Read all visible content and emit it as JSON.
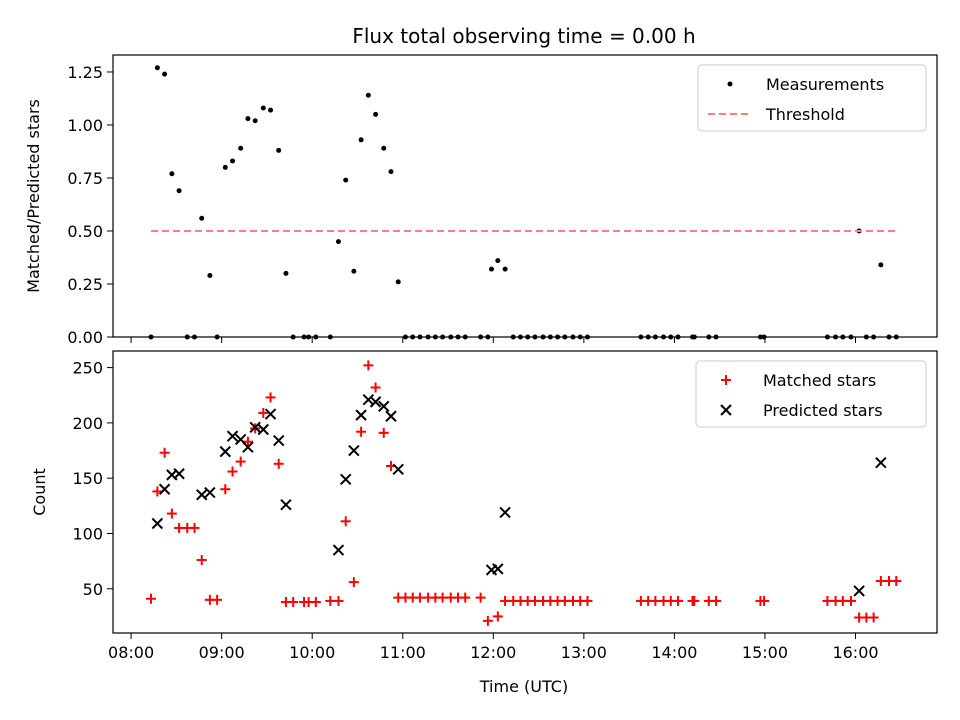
{
  "chart_data": [
    {
      "type": "scatter",
      "title": "Flux total observing time = 0.00 h",
      "xlabel": "",
      "ylabel": "Matched/Predicted stars",
      "xlim": [
        7.8,
        16.9
      ],
      "ylim": [
        0.0,
        1.33
      ],
      "yticks": [
        0.0,
        0.25,
        0.5,
        0.75,
        1.0,
        1.25
      ],
      "ytick_labels": [
        "0.00",
        "0.25",
        "0.50",
        "0.75",
        "1.00",
        "1.25"
      ],
      "xticks": [
        8,
        9,
        10,
        11,
        12,
        13,
        14,
        15,
        16
      ],
      "legend_position": "top-right",
      "series": [
        {
          "name": "Measurements",
          "kind": "points",
          "color": "#000000",
          "points": [
            [
              8.22,
              0.0
            ],
            [
              8.29,
              1.27
            ],
            [
              8.37,
              1.24
            ],
            [
              8.45,
              0.77
            ],
            [
              8.53,
              0.69
            ],
            [
              8.62,
              0.0
            ],
            [
              8.7,
              0.0
            ],
            [
              8.78,
              0.56
            ],
            [
              8.87,
              0.29
            ],
            [
              8.95,
              0.0
            ],
            [
              9.04,
              0.8
            ],
            [
              9.12,
              0.83
            ],
            [
              9.21,
              0.89
            ],
            [
              9.29,
              1.03
            ],
            [
              9.37,
              1.02
            ],
            [
              9.46,
              1.08
            ],
            [
              9.54,
              1.07
            ],
            [
              9.63,
              0.88
            ],
            [
              9.71,
              0.3
            ],
            [
              9.79,
              0.0
            ],
            [
              9.91,
              0.0
            ],
            [
              9.96,
              0.0
            ],
            [
              10.04,
              0.0
            ],
            [
              10.2,
              0.0
            ],
            [
              10.29,
              0.45
            ],
            [
              10.37,
              0.74
            ],
            [
              10.46,
              0.31
            ],
            [
              10.54,
              0.93
            ],
            [
              10.62,
              1.14
            ],
            [
              10.7,
              1.05
            ],
            [
              10.79,
              0.89
            ],
            [
              10.87,
              0.78
            ],
            [
              10.95,
              0.26
            ],
            [
              11.03,
              0.0
            ],
            [
              11.11,
              0.0
            ],
            [
              11.19,
              0.0
            ],
            [
              11.28,
              0.0
            ],
            [
              11.36,
              0.0
            ],
            [
              11.44,
              0.0
            ],
            [
              11.53,
              0.0
            ],
            [
              11.61,
              0.0
            ],
            [
              11.69,
              0.0
            ],
            [
              11.86,
              0.0
            ],
            [
              11.94,
              0.0
            ],
            [
              11.98,
              0.32
            ],
            [
              12.05,
              0.36
            ],
            [
              12.13,
              0.32
            ],
            [
              12.22,
              0.0
            ],
            [
              12.3,
              0.0
            ],
            [
              12.38,
              0.0
            ],
            [
              12.46,
              0.0
            ],
            [
              12.55,
              0.0
            ],
            [
              12.63,
              0.0
            ],
            [
              12.71,
              0.0
            ],
            [
              12.79,
              0.0
            ],
            [
              12.88,
              0.0
            ],
            [
              12.96,
              0.0
            ],
            [
              13.04,
              0.0
            ],
            [
              13.63,
              0.0
            ],
            [
              13.71,
              0.0
            ],
            [
              13.79,
              0.0
            ],
            [
              13.88,
              0.0
            ],
            [
              13.96,
              0.0
            ],
            [
              14.04,
              0.0
            ],
            [
              14.2,
              0.0
            ],
            [
              14.22,
              0.0
            ],
            [
              14.38,
              0.0
            ],
            [
              14.46,
              0.0
            ],
            [
              14.95,
              0.0
            ],
            [
              14.99,
              0.0
            ],
            [
              15.69,
              0.0
            ],
            [
              15.78,
              0.0
            ],
            [
              15.86,
              0.0
            ],
            [
              15.95,
              0.0
            ],
            [
              16.04,
              0.5
            ],
            [
              16.12,
              0.0
            ],
            [
              16.2,
              0.0
            ],
            [
              16.28,
              0.34
            ],
            [
              16.37,
              0.0
            ],
            [
              16.45,
              0.0
            ]
          ]
        },
        {
          "name": "Threshold",
          "kind": "dashed-line",
          "color": "#ff7f7f",
          "x": [
            8.22,
            16.45
          ],
          "y": [
            0.5,
            0.5
          ]
        }
      ]
    },
    {
      "type": "scatter",
      "title": "",
      "xlabel": "Time (UTC)",
      "ylabel": "Count",
      "xlim": [
        7.8,
        16.9
      ],
      "ylim": [
        10,
        265
      ],
      "yticks": [
        50,
        100,
        150,
        200,
        250
      ],
      "ytick_labels": [
        "50",
        "100",
        "150",
        "200",
        "250"
      ],
      "xticks": [
        8,
        9,
        10,
        11,
        12,
        13,
        14,
        15,
        16
      ],
      "xtick_labels": [
        "08:00",
        "09:00",
        "10:00",
        "11:00",
        "12:00",
        "13:00",
        "14:00",
        "15:00",
        "16:00"
      ],
      "legend_position": "top-right",
      "series": [
        {
          "name": "Matched stars",
          "kind": "plus",
          "color": "#ff0000",
          "points": [
            [
              8.22,
              41
            ],
            [
              8.29,
              138
            ],
            [
              8.37,
              173
            ],
            [
              8.45,
              118
            ],
            [
              8.53,
              105
            ],
            [
              8.62,
              105
            ],
            [
              8.7,
              105
            ],
            [
              8.78,
              76
            ],
            [
              8.87,
              40
            ],
            [
              8.95,
              40
            ],
            [
              9.04,
              140
            ],
            [
              9.12,
              156
            ],
            [
              9.21,
              165
            ],
            [
              9.29,
              183
            ],
            [
              9.37,
              195
            ],
            [
              9.46,
              209
            ],
            [
              9.54,
              223
            ],
            [
              9.63,
              163
            ],
            [
              9.71,
              38
            ],
            [
              9.79,
              38
            ],
            [
              9.91,
              38
            ],
            [
              9.96,
              38
            ],
            [
              10.04,
              38
            ],
            [
              10.2,
              39
            ],
            [
              10.29,
              39
            ],
            [
              10.37,
              111
            ],
            [
              10.46,
              56
            ],
            [
              10.54,
              192
            ],
            [
              10.62,
              252
            ],
            [
              10.7,
              232
            ],
            [
              10.79,
              191
            ],
            [
              10.87,
              161
            ],
            [
              10.95,
              42
            ],
            [
              11.03,
              42
            ],
            [
              11.11,
              42
            ],
            [
              11.19,
              42
            ],
            [
              11.28,
              42
            ],
            [
              11.36,
              42
            ],
            [
              11.44,
              42
            ],
            [
              11.53,
              42
            ],
            [
              11.61,
              42
            ],
            [
              11.69,
              42
            ],
            [
              11.86,
              42
            ],
            [
              11.94,
              21
            ],
            [
              12.05,
              25
            ],
            [
              12.13,
              39
            ],
            [
              12.22,
              39
            ],
            [
              12.3,
              39
            ],
            [
              12.38,
              39
            ],
            [
              12.46,
              39
            ],
            [
              12.55,
              39
            ],
            [
              12.63,
              39
            ],
            [
              12.71,
              39
            ],
            [
              12.79,
              39
            ],
            [
              12.88,
              39
            ],
            [
              12.96,
              39
            ],
            [
              13.04,
              39
            ],
            [
              13.63,
              39
            ],
            [
              13.71,
              39
            ],
            [
              13.79,
              39
            ],
            [
              13.88,
              39
            ],
            [
              13.96,
              39
            ],
            [
              14.04,
              39
            ],
            [
              14.2,
              39
            ],
            [
              14.22,
              39
            ],
            [
              14.38,
              39
            ],
            [
              14.46,
              39
            ],
            [
              14.95,
              39
            ],
            [
              14.99,
              39
            ],
            [
              15.69,
              39
            ],
            [
              15.78,
              39
            ],
            [
              15.86,
              39
            ],
            [
              15.95,
              39
            ],
            [
              16.04,
              24
            ],
            [
              16.12,
              24
            ],
            [
              16.2,
              24
            ],
            [
              16.28,
              57
            ],
            [
              16.37,
              57
            ],
            [
              16.45,
              57
            ]
          ]
        },
        {
          "name": "Predicted stars",
          "kind": "x",
          "color": "#000000",
          "points": [
            [
              8.29,
              109
            ],
            [
              8.37,
              140
            ],
            [
              8.45,
              153
            ],
            [
              8.53,
              154
            ],
            [
              8.78,
              135
            ],
            [
              8.87,
              137
            ],
            [
              9.04,
              174
            ],
            [
              9.12,
              188
            ],
            [
              9.21,
              185
            ],
            [
              9.29,
              178
            ],
            [
              9.37,
              196
            ],
            [
              9.46,
              194
            ],
            [
              9.54,
              208
            ],
            [
              9.63,
              184
            ],
            [
              9.71,
              126
            ],
            [
              10.29,
              85
            ],
            [
              10.37,
              149
            ],
            [
              10.46,
              175
            ],
            [
              10.54,
              207
            ],
            [
              10.62,
              221
            ],
            [
              10.7,
              219
            ],
            [
              10.79,
              215
            ],
            [
              10.87,
              206
            ],
            [
              10.95,
              158
            ],
            [
              11.98,
              67
            ],
            [
              12.05,
              68
            ],
            [
              12.13,
              119
            ],
            [
              16.04,
              48
            ],
            [
              16.28,
              164
            ]
          ]
        }
      ]
    }
  ]
}
